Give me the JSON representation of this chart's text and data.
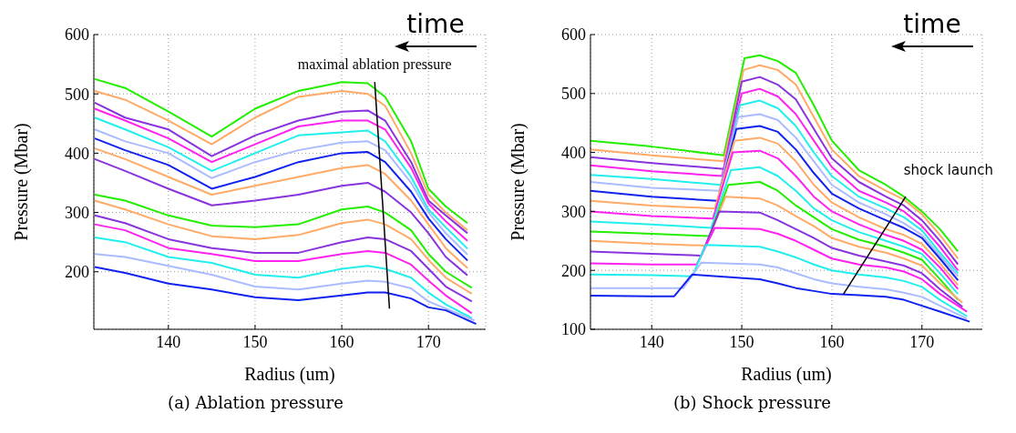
{
  "chart_data": [
    {
      "type": "line",
      "title": "(a) Ablation pressure",
      "xlabel": "Radius (um)",
      "ylabel": "Pressure (Mbar)",
      "x": [
        131.5,
        135,
        140,
        145,
        150,
        155,
        160,
        163,
        165,
        168,
        170,
        172,
        174.5
      ],
      "xlim": [
        131.4,
        176.6
      ],
      "ylim": [
        103,
        600
      ],
      "xticks": [
        140,
        150,
        160,
        170
      ],
      "yticks": [
        200,
        300,
        400,
        500,
        600
      ],
      "grid": true,
      "legend": false,
      "marker": "none",
      "line_style": "solid",
      "annotations": [
        {
          "text": "maximal ablation pressure",
          "x": 163.8,
          "y": 520
        },
        "time"
      ],
      "series": [
        {
          "color": "#22ee00",
          "values": [
            525,
            510,
            470,
            428,
            475,
            505,
            520,
            518,
            495,
            420,
            340,
            310,
            282
          ]
        },
        {
          "color": "#ffaa66",
          "values": [
            505,
            490,
            455,
            415,
            460,
            495,
            505,
            500,
            480,
            400,
            330,
            300,
            270
          ]
        },
        {
          "color": "#8833dd",
          "values": [
            485,
            460,
            440,
            395,
            430,
            455,
            470,
            472,
            455,
            385,
            320,
            295,
            265
          ]
        },
        {
          "color": "#ff22ee",
          "values": [
            475,
            455,
            425,
            385,
            415,
            445,
            455,
            455,
            440,
            375,
            315,
            285,
            252
          ]
        },
        {
          "color": "#22eeee",
          "values": [
            460,
            440,
            410,
            370,
            400,
            430,
            435,
            438,
            420,
            360,
            305,
            275,
            239
          ]
        },
        {
          "color": "#aabbff",
          "values": [
            440,
            420,
            400,
            358,
            385,
            405,
            418,
            420,
            405,
            350,
            300,
            265,
            229
          ]
        },
        {
          "color": "#1122ee",
          "values": [
            425,
            405,
            380,
            340,
            360,
            385,
            400,
            402,
            385,
            335,
            290,
            255,
            219
          ]
        },
        {
          "color": "#ffaa66",
          "values": [
            408,
            390,
            360,
            330,
            345,
            360,
            375,
            380,
            365,
            320,
            280,
            240,
            206
          ]
        },
        {
          "color": "#8833dd",
          "values": [
            390,
            370,
            340,
            312,
            320,
            330,
            345,
            350,
            335,
            300,
            265,
            225,
            194
          ]
        },
        {
          "color": "#22ee00",
          "x": [
            131.5,
            135,
            140,
            145,
            150,
            155,
            160,
            163,
            165,
            168,
            170,
            172,
            175
          ],
          "values": [
            330,
            320,
            295,
            278,
            275,
            280,
            305,
            310,
            300,
            270,
            230,
            200,
            173
          ]
        },
        {
          "color": "#ffaa66",
          "x": [
            131.5,
            135,
            140,
            145,
            150,
            155,
            160,
            163,
            165,
            168,
            170,
            172,
            175
          ],
          "values": [
            320,
            305,
            280,
            260,
            255,
            262,
            282,
            288,
            280,
            255,
            220,
            190,
            163
          ]
        },
        {
          "color": "#8833dd",
          "x": [
            131.5,
            135,
            140,
            145,
            150,
            155,
            160,
            163,
            165,
            168,
            170,
            172,
            175
          ],
          "values": [
            295,
            282,
            255,
            240,
            232,
            232,
            250,
            258,
            255,
            235,
            205,
            175,
            150
          ]
        },
        {
          "color": "#ff22ee",
          "x": [
            131.5,
            135,
            140,
            145,
            150,
            155,
            160,
            163,
            165,
            168,
            170,
            172,
            175
          ],
          "values": [
            280,
            270,
            240,
            230,
            218,
            218,
            230,
            235,
            232,
            212,
            185,
            160,
            130
          ]
        },
        {
          "color": "#22eeee",
          "x": [
            131.5,
            135,
            140,
            145,
            150,
            155,
            160,
            163,
            165,
            168,
            170,
            172,
            175
          ],
          "values": [
            258,
            250,
            225,
            215,
            195,
            190,
            205,
            210,
            205,
            190,
            165,
            145,
            122
          ]
        },
        {
          "color": "#aabbff",
          "x": [
            131.5,
            135,
            140,
            145,
            150,
            155,
            160,
            163,
            165,
            168,
            170,
            172,
            175.3
          ],
          "values": [
            230,
            225,
            210,
            195,
            175,
            170,
            180,
            185,
            183,
            172,
            150,
            138,
            118
          ]
        },
        {
          "color": "#1122ee",
          "x": [
            131.5,
            135,
            140,
            145,
            150,
            155,
            160,
            163,
            165,
            168,
            170,
            172,
            175.5
          ],
          "values": [
            208,
            198,
            180,
            170,
            157,
            152,
            160,
            165,
            165,
            155,
            140,
            135,
            112
          ]
        },
        {
          "color": "#000000",
          "x": [
            163.8,
            165.5
          ],
          "values": [
            520,
            138
          ]
        }
      ]
    },
    {
      "type": "line",
      "title": "(b) Shock pressure",
      "xlabel": "Radius (um)",
      "ylabel": "Pressure (Mbar)",
      "xlim": [
        133.2,
        176.7
      ],
      "ylim": [
        100,
        600
      ],
      "xticks": [
        140,
        150,
        160,
        170
      ],
      "yticks": [
        100,
        200,
        300,
        400,
        500,
        600
      ],
      "grid": true,
      "legend": false,
      "marker": "none",
      "line_style": "solid",
      "annotations": [
        "shock launch",
        "time"
      ],
      "series": [
        {
          "color": "#22ee00",
          "x": [
            133.2,
            140,
            148,
            150.3,
            152,
            154,
            156,
            158,
            160,
            163,
            166,
            168,
            170,
            172,
            174
          ],
          "values": [
            420,
            410,
            395,
            560,
            565,
            555,
            535,
            480,
            420,
            370,
            345,
            325,
            300,
            270,
            232
          ]
        },
        {
          "color": "#ffaa66",
          "x": [
            133.2,
            140,
            148,
            150.2,
            152,
            154,
            156,
            158,
            160,
            163,
            166,
            168,
            170,
            172,
            174
          ],
          "values": [
            405,
            395,
            385,
            540,
            548,
            540,
            515,
            460,
            405,
            360,
            335,
            320,
            295,
            260,
            220
          ]
        },
        {
          "color": "#8833dd",
          "x": [
            133.2,
            140,
            148,
            150,
            152,
            154,
            156,
            158,
            160,
            163,
            166,
            168,
            170,
            172,
            174
          ],
          "values": [
            392,
            382,
            372,
            520,
            528,
            515,
            490,
            440,
            390,
            350,
            325,
            310,
            285,
            250,
            210
          ]
        },
        {
          "color": "#ff22ee",
          "x": [
            133.2,
            140,
            147.8,
            150,
            152,
            154,
            156,
            158,
            160,
            163,
            166,
            168,
            170,
            172,
            174
          ],
          "values": [
            378,
            368,
            360,
            500,
            508,
            495,
            465,
            420,
            375,
            335,
            315,
            300,
            275,
            240,
            200
          ]
        },
        {
          "color": "#22eeee",
          "x": [
            133.2,
            140,
            147.7,
            149.8,
            152,
            154,
            156,
            158,
            160,
            163,
            166,
            168,
            170,
            172,
            174
          ],
          "values": [
            362,
            355,
            345,
            480,
            488,
            475,
            445,
            400,
            360,
            325,
            305,
            290,
            268,
            230,
            195
          ]
        },
        {
          "color": "#aabbff",
          "x": [
            133.2,
            140,
            147.5,
            149.6,
            152,
            154,
            156,
            158,
            160,
            163,
            166,
            168,
            170,
            172,
            174
          ],
          "values": [
            350,
            340,
            335,
            460,
            465,
            455,
            425,
            385,
            345,
            315,
            295,
            280,
            260,
            225,
            190
          ]
        },
        {
          "color": "#1122ee",
          "x": [
            133.2,
            140,
            147.3,
            149.4,
            152,
            154,
            156,
            158,
            160,
            163,
            166,
            168,
            170,
            172,
            174
          ],
          "values": [
            335,
            325,
            318,
            440,
            445,
            435,
            405,
            365,
            330,
            305,
            285,
            272,
            255,
            220,
            183
          ]
        },
        {
          "color": "#ffaa66",
          "x": [
            133.2,
            140,
            147,
            149.2,
            152,
            154,
            156,
            158,
            160,
            163,
            166,
            168,
            170,
            172,
            174
          ],
          "values": [
            318,
            310,
            305,
            420,
            425,
            415,
            385,
            345,
            315,
            290,
            270,
            260,
            245,
            212,
            175
          ]
        },
        {
          "color": "#ff22ee",
          "x": [
            133.2,
            140,
            146.8,
            149,
            152,
            154,
            156,
            158,
            160,
            163,
            166,
            168,
            170,
            172,
            174
          ],
          "values": [
            300,
            292,
            288,
            400,
            403,
            390,
            360,
            325,
            300,
            278,
            260,
            250,
            235,
            205,
            168
          ]
        },
        {
          "color": "#22eeee",
          "x": [
            133.2,
            140,
            146.6,
            148.8,
            152,
            154,
            156,
            158,
            160,
            163,
            166,
            168,
            170,
            172,
            174
          ],
          "values": [
            283,
            278,
            272,
            370,
            375,
            360,
            335,
            305,
            285,
            265,
            250,
            240,
            228,
            195,
            160
          ]
        },
        {
          "color": "#22ee00",
          "x": [
            133.2,
            140,
            146.4,
            148.5,
            152,
            154,
            156,
            158,
            160,
            163,
            166,
            168,
            170,
            172,
            174
          ],
          "values": [
            266,
            262,
            258,
            345,
            350,
            335,
            310,
            290,
            270,
            252,
            240,
            230,
            218,
            185,
            150
          ]
        },
        {
          "color": "#ffaa66",
          "x": [
            133.2,
            140,
            146,
            148.2,
            152,
            154,
            156,
            158,
            160,
            163,
            166,
            168,
            170,
            172,
            174.5
          ],
          "values": [
            250,
            245,
            242,
            325,
            322,
            310,
            292,
            275,
            255,
            240,
            230,
            220,
            208,
            178,
            145
          ]
        },
        {
          "color": "#8833dd",
          "x": [
            133.2,
            140,
            145.5,
            147.5,
            152,
            154,
            156,
            158,
            160,
            163,
            166,
            168,
            170,
            172,
            174.5
          ],
          "values": [
            232,
            228,
            225,
            300,
            298,
            285,
            270,
            255,
            238,
            225,
            215,
            208,
            195,
            168,
            138
          ]
        },
        {
          "color": "#ff22ee",
          "x": [
            133.2,
            140,
            145,
            147,
            152,
            154,
            156,
            158,
            160,
            163,
            166,
            168,
            170,
            172,
            175
          ],
          "values": [
            212,
            210,
            210,
            272,
            270,
            262,
            250,
            235,
            220,
            210,
            205,
            198,
            185,
            160,
            130
          ]
        },
        {
          "color": "#22eeee",
          "x": [
            133.2,
            140,
            144.5,
            146,
            152,
            154,
            156,
            158,
            160,
            163,
            166,
            168,
            170,
            172,
            175
          ],
          "values": [
            193,
            192,
            190,
            243,
            240,
            232,
            222,
            210,
            200,
            193,
            188,
            182,
            172,
            150,
            122
          ]
        },
        {
          "color": "#aabbff",
          "x": [
            133.2,
            140,
            143.5,
            145.5,
            152,
            154,
            156,
            158,
            160,
            163,
            166,
            168,
            170,
            172,
            175
          ],
          "values": [
            170,
            170,
            170,
            213,
            210,
            205,
            195,
            185,
            178,
            172,
            168,
            162,
            155,
            140,
            118
          ]
        },
        {
          "color": "#1122ee",
          "x": [
            133.2,
            140,
            142.5,
            144.5,
            152,
            154,
            156,
            158,
            160,
            163,
            166,
            168,
            170,
            172,
            175.3
          ],
          "values": [
            157,
            156,
            156,
            193,
            185,
            178,
            170,
            165,
            160,
            158,
            155,
            150,
            140,
            130,
            113
          ]
        },
        {
          "color": "#000000",
          "x": [
            161.3,
            168.2
          ],
          "values": [
            160,
            325
          ]
        }
      ]
    }
  ]
}
